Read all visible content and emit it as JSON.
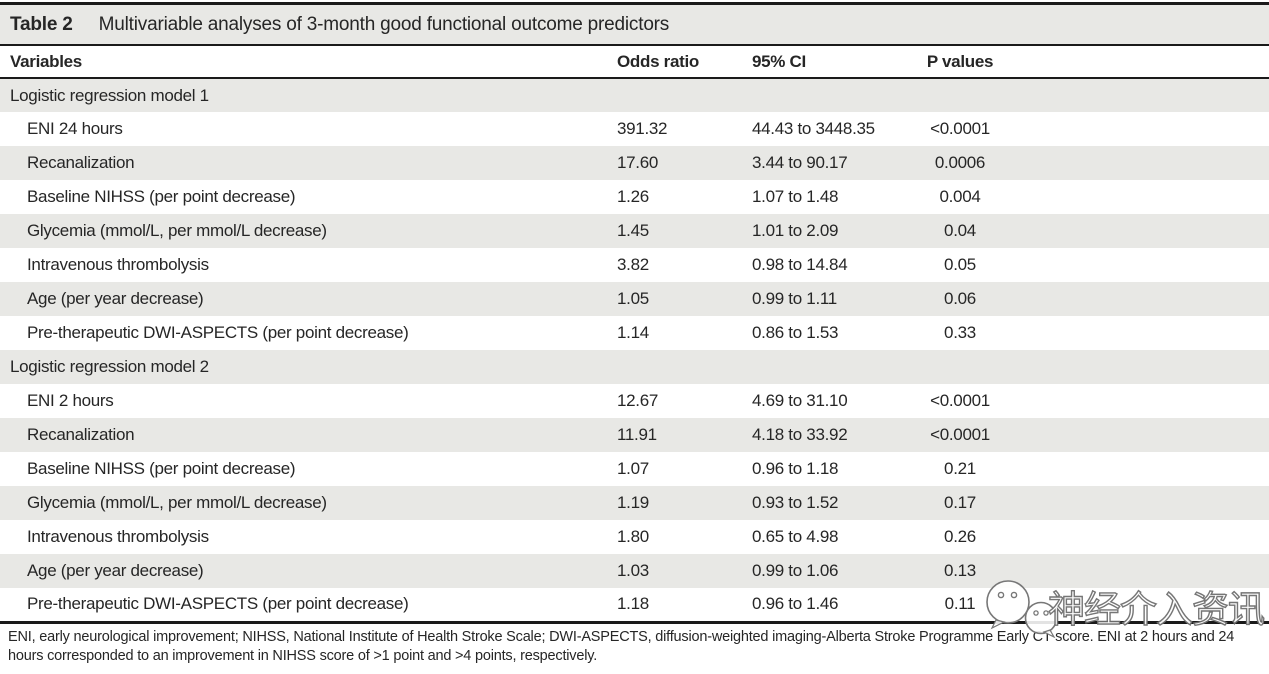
{
  "caption": {
    "label": "Table 2",
    "text": "Multivariable analyses of 3-month good functional outcome predictors"
  },
  "columns": [
    "Variables",
    "Odds ratio",
    "95% CI",
    "P values"
  ],
  "sections": [
    {
      "header": "Logistic regression model 1",
      "rows": [
        {
          "variable": "ENI 24 hours",
          "odds_ratio": "391.32",
          "ci": "44.43 to 3448.35",
          "p": "<0.0001"
        },
        {
          "variable": "Recanalization",
          "odds_ratio": "17.60",
          "ci": "3.44 to 90.17",
          "p": "0.0006"
        },
        {
          "variable": "Baseline NIHSS (per point decrease)",
          "odds_ratio": "1.26",
          "ci": "1.07 to 1.48",
          "p": "0.004"
        },
        {
          "variable": "Glycemia (mmol/L, per mmol/L decrease)",
          "odds_ratio": "1.45",
          "ci": "1.01 to 2.09",
          "p": "0.04"
        },
        {
          "variable": "Intravenous thrombolysis",
          "odds_ratio": "3.82",
          "ci": "0.98 to 14.84",
          "p": "0.05"
        },
        {
          "variable": "Age (per year decrease)",
          "odds_ratio": "1.05",
          "ci": "0.99 to 1.11",
          "p": "0.06"
        },
        {
          "variable": "Pre-therapeutic DWI-ASPECTS (per point decrease)",
          "odds_ratio": "1.14",
          "ci": "0.86 to 1.53",
          "p": "0.33"
        }
      ]
    },
    {
      "header": "Logistic regression model 2",
      "rows": [
        {
          "variable": "ENI 2 hours",
          "odds_ratio": "12.67",
          "ci": "4.69 to 31.10",
          "p": "<0.0001"
        },
        {
          "variable": "Recanalization",
          "odds_ratio": "11.91",
          "ci": "4.18 to 33.92",
          "p": "<0.0001"
        },
        {
          "variable": "Baseline NIHSS (per point decrease)",
          "odds_ratio": "1.07",
          "ci": "0.96 to 1.18",
          "p": "0.21"
        },
        {
          "variable": "Glycemia (mmol/L, per mmol/L decrease)",
          "odds_ratio": "1.19",
          "ci": "0.93 to 1.52",
          "p": "0.17"
        },
        {
          "variable": "Intravenous thrombolysis",
          "odds_ratio": "1.80",
          "ci": "0.65 to 4.98",
          "p": "0.26"
        },
        {
          "variable": "Age (per year decrease)",
          "odds_ratio": "1.03",
          "ci": "0.99 to 1.06",
          "p": "0.13"
        },
        {
          "variable": "Pre-therapeutic DWI-ASPECTS (per point decrease)",
          "odds_ratio": "1.18",
          "ci": "0.96 to 1.46",
          "p": "0.11"
        }
      ]
    }
  ],
  "footnote": "ENI, early neurological improvement; NIHSS, National Institute of Health Stroke Scale; DWI-ASPECTS, diffusion-weighted imaging-Alberta Stroke Programme Early CT score. ENI at 2 hours and 24 hours corresponded to an improvement in NIHSS score of >1 point and >4 points, respectively.",
  "watermark": {
    "text": "神经介入资讯",
    "logo": "wechat-bubbles-icon"
  },
  "colors": {
    "band": "#e8e8e5",
    "rule": "#1a1a1a",
    "text": "#262626"
  }
}
